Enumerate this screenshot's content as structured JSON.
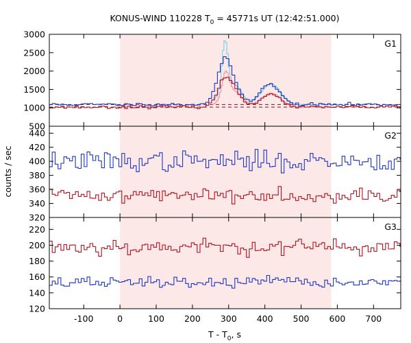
{
  "chart_data": {
    "type": "line",
    "title": {
      "instrument": "KONUS-WIND 110228",
      "t": "T",
      "sub": "0",
      "rest": " = 45771s UT (12:42:51.000)"
    },
    "xlabel": {
      "prefix": "T - T",
      "sub": "0",
      "suffix": ", s"
    },
    "ylabel": "counts / sec",
    "xlim": [
      -195,
      775
    ],
    "xticks": [
      -100,
      0,
      100,
      200,
      300,
      400,
      500,
      600,
      700
    ],
    "shaded_interval": [
      0,
      583
    ],
    "shade_color": "#fde8e8",
    "bin_width": 8,
    "colors": {
      "blue": "#1a35c0",
      "red": "#b0101c",
      "light_blue": "#6fcbe6",
      "pink": "#f08aa0",
      "dashed": "#7a1020"
    },
    "panels": [
      {
        "label": "G1",
        "ylim": [
          500,
          3000
        ],
        "yticks": [
          500,
          1000,
          1500,
          2000,
          2500,
          3000
        ],
        "background_levels": [
          1090,
          1020
        ],
        "series": [
          {
            "color_key": "blue",
            "baseline": 1090,
            "noise": 22,
            "pulses": [
              [
                288,
                18,
                880
              ],
              [
                300,
                30,
                380
              ],
              [
                318,
                14,
                150
              ],
              [
                415,
                26,
                540
              ],
              [
                390,
                10,
                80
              ]
            ],
            "seed": 11
          },
          {
            "color_key": "red",
            "baseline": 1020,
            "noise": 18,
            "pulses": [
              [
                290,
                18,
                560
              ],
              [
                305,
                30,
                280
              ],
              [
                320,
                14,
                120
              ],
              [
                415,
                26,
                360
              ]
            ],
            "seed": 23
          }
        ],
        "overlays": [
          {
            "color_key": "light_blue",
            "baseline": 1090,
            "pulses": [
              [
                288,
                8,
                1350
              ],
              [
                300,
                30,
                420
              ],
              [
                318,
                14,
                180
              ],
              [
                415,
                26,
                560
              ]
            ],
            "range": [
              255,
              590
            ]
          },
          {
            "color_key": "pink",
            "baseline": 1020,
            "pulses": [
              [
                290,
                10,
                700
              ],
              [
                305,
                30,
                300
              ],
              [
                320,
                14,
                140
              ],
              [
                415,
                26,
                380
              ]
            ],
            "range": [
              255,
              590
            ]
          }
        ]
      },
      {
        "label": "G2",
        "ylim": [
          320,
          450
        ],
        "yticks": [
          320,
          340,
          360,
          380,
          400,
          420,
          440
        ],
        "background_levels": [],
        "series": [
          {
            "color_key": "blue",
            "baseline": 400,
            "noise": 7,
            "pulses": [],
            "seed": 37
          },
          {
            "color_key": "red",
            "baseline": 352,
            "noise": 5,
            "pulses": [],
            "seed": 41
          }
        ],
        "overlays": []
      },
      {
        "label": "G3",
        "ylim": [
          120,
          235
        ],
        "yticks": [
          120,
          140,
          160,
          180,
          200,
          220
        ],
        "background_levels": [],
        "series": [
          {
            "color_key": "red",
            "baseline": 198,
            "noise": 5,
            "pulses": [],
            "seed": 53
          },
          {
            "color_key": "blue",
            "baseline": 153,
            "noise": 3.5,
            "pulses": [],
            "seed": 67
          }
        ],
        "overlays": []
      }
    ]
  }
}
